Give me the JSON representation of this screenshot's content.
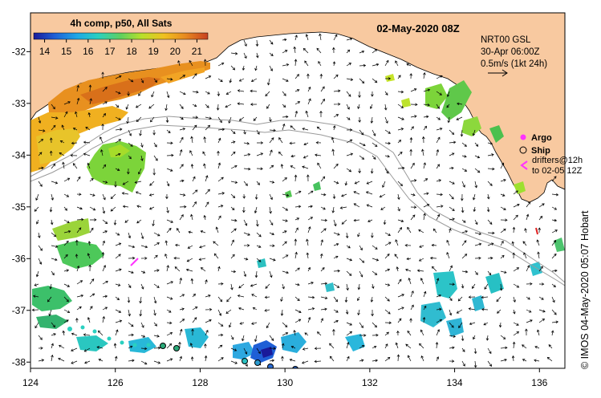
{
  "map": {
    "title": "02-May-2020 08Z",
    "colorbar": {
      "title": "4h comp, p50, All Sats",
      "ticks": [
        "14",
        "15",
        "16",
        "17",
        "18",
        "19",
        "20",
        "21"
      ],
      "range": [
        13.5,
        21.5
      ],
      "colors": [
        "#1a1a9a",
        "#1f5fd6",
        "#1fa8e6",
        "#2ad0c0",
        "#5fd05f",
        "#b8e02a",
        "#f0c020",
        "#e88a20",
        "#c84020"
      ]
    },
    "current_info": {
      "product": "NRT00 GSL",
      "time": "30-Apr 06:00Z",
      "scale": "0.5m/s (1kt 24h)"
    },
    "legend": {
      "argo": "Argo",
      "ship": "Ship",
      "drifters": "drifters@12h",
      "drifters_to": "to 02-05 12Z"
    },
    "x_axis": {
      "ticks": [
        "124",
        "126",
        "128",
        "130",
        "132",
        "134",
        "136"
      ],
      "range": [
        124,
        136.6
      ]
    },
    "y_axis": {
      "ticks": [
        "-32",
        "-33",
        "-34",
        "-35",
        "-36",
        "-37",
        "-38"
      ],
      "range": [
        -38.12,
        -31.25
      ]
    },
    "credit": "© IMOS 04-May-2020 05:07 Hobart",
    "colors": {
      "land": "#f8c9a0",
      "ocean": "#ffffff",
      "shelf_line": "#a0a0a0",
      "argo": "#ff33ff",
      "drifter_arrow": "#ff33ff",
      "ship": "#000000"
    }
  }
}
